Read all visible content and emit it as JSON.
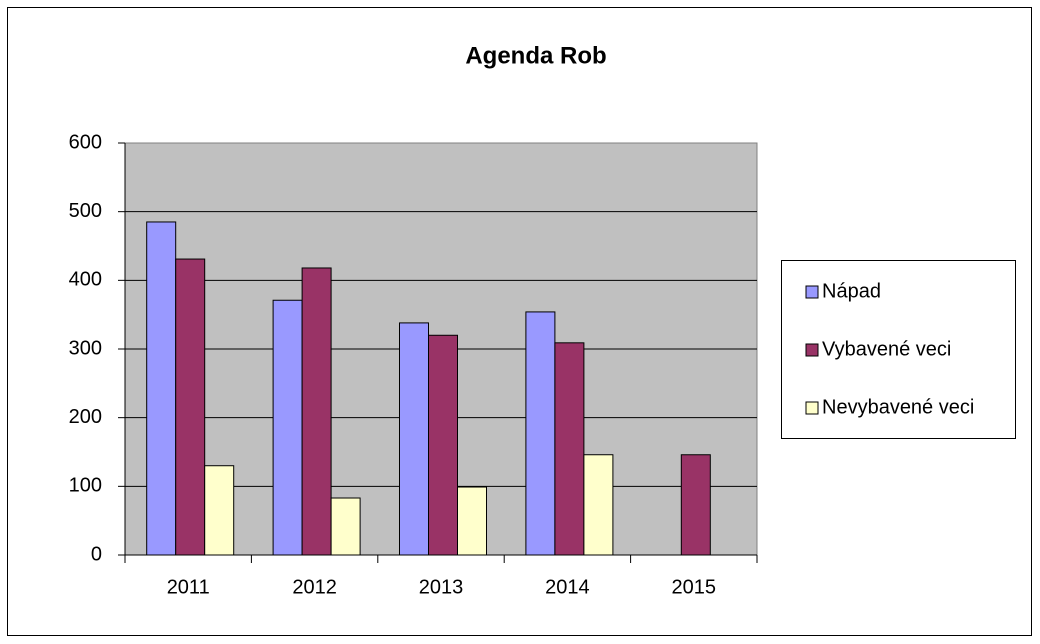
{
  "chart_data": {
    "type": "bar",
    "title": "Agenda Rob",
    "categories": [
      "2011",
      "2012",
      "2013",
      "2014",
      "2015"
    ],
    "series": [
      {
        "name": "Nápad",
        "color": "#9999ff",
        "values": [
          485,
          371,
          338,
          354,
          null
        ]
      },
      {
        "name": "Vybavené veci",
        "color": "#993366",
        "values": [
          431,
          418,
          320,
          309,
          146
        ]
      },
      {
        "name": "Nevybavené veci",
        "color": "#ffffcc",
        "values": [
          130,
          83,
          99,
          146,
          null
        ]
      }
    ],
    "ylim": [
      0,
      600
    ],
    "yticks": [
      0,
      100,
      200,
      300,
      400,
      500,
      600
    ],
    "grid": true,
    "legend": "right"
  }
}
